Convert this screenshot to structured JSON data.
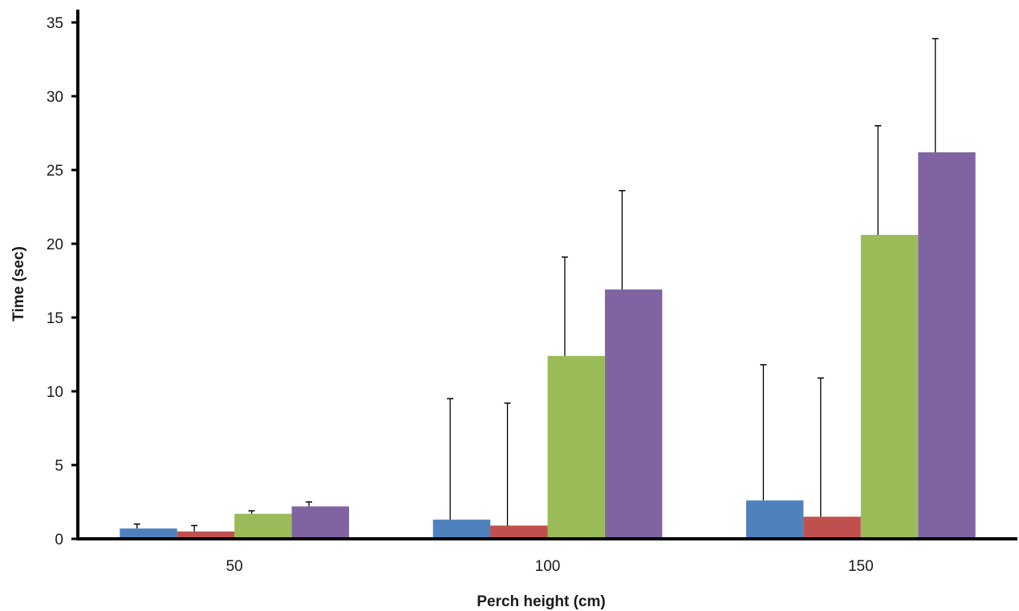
{
  "chart_data": {
    "type": "bar",
    "title": "",
    "xlabel": "Perch height (cm)",
    "ylabel": "Time (sec)",
    "categories": [
      "50",
      "100",
      "150"
    ],
    "ylim": [
      0,
      35
    ],
    "yticks": [
      0,
      5,
      10,
      15,
      20,
      25,
      30,
      35
    ],
    "grid": false,
    "legend": "none",
    "series": [
      {
        "color": "#4F81BD",
        "values": [
          0.7,
          1.3,
          2.6
        ],
        "error_upper": [
          1.0,
          9.5,
          11.8
        ]
      },
      {
        "color": "#C0504D",
        "values": [
          0.5,
          0.9,
          1.5
        ],
        "error_upper": [
          0.9,
          9.2,
          10.9
        ]
      },
      {
        "color": "#9BBB59",
        "values": [
          1.7,
          12.4,
          20.6
        ],
        "error_upper": [
          1.9,
          19.1,
          28.0
        ]
      },
      {
        "color": "#8064A2",
        "values": [
          2.2,
          16.9,
          26.2
        ],
        "error_upper": [
          2.5,
          23.6,
          33.9
        ]
      }
    ]
  }
}
